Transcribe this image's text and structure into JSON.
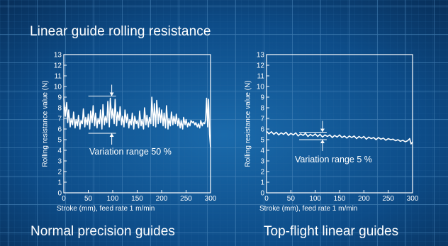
{
  "page": {
    "title": "Linear guide rolling resistance",
    "footer_left": "Normal precision guides",
    "footer_right": "Top-flight linear guides"
  },
  "colors": {
    "background": "#0b3f73",
    "grid_major": "#3d78ab",
    "grid_minor": "#1f5a8e",
    "ink": "#ffffff"
  },
  "chart_data": [
    {
      "type": "line",
      "xlabel": "Stroke (mm), feed rate 1 m/min",
      "ylabel": "Rolling resistance value (N)",
      "xlim": [
        0,
        300
      ],
      "ylim": [
        0,
        13
      ],
      "xticks": [
        "0",
        "50",
        "100",
        "150",
        "200",
        "250",
        "300"
      ],
      "yticks": [
        "0",
        "1",
        "2",
        "3",
        "4",
        "5",
        "6",
        "7",
        "8",
        "9",
        "10",
        "11",
        "12",
        "13"
      ],
      "annotation": "Variation range 50 %",
      "range_marker": {
        "x": 98,
        "y_high": 9.1,
        "y_low": 5.6
      },
      "series": [
        {
          "x": [
            0,
            3,
            6,
            8,
            10,
            13,
            15,
            18,
            20,
            23,
            25,
            28,
            30,
            33,
            35,
            38,
            40,
            43,
            45,
            48,
            50,
            53,
            55,
            58,
            60,
            63,
            65,
            68,
            70,
            73,
            75,
            78,
            80,
            83,
            85,
            88,
            90,
            93,
            95,
            98,
            100,
            103,
            105,
            108,
            110,
            113,
            115,
            118,
            120,
            123,
            125,
            128,
            130,
            133,
            135,
            138,
            140,
            143,
            145,
            148,
            150,
            153,
            155,
            158,
            160,
            163,
            165,
            168,
            170,
            173,
            175,
            178,
            180,
            183,
            185,
            188,
            190,
            193,
            195,
            198,
            200,
            203,
            205,
            208,
            210,
            213,
            215,
            218,
            220,
            223,
            225,
            228,
            230,
            233,
            235,
            238,
            240,
            243,
            245,
            248,
            250,
            253,
            255,
            258,
            260,
            263,
            265,
            268,
            270,
            273,
            275,
            278,
            280,
            283,
            285,
            288,
            290,
            292,
            294,
            296,
            298,
            300
          ],
          "y": [
            8.9,
            7.2,
            8.5,
            6.6,
            7.8,
            6.2,
            7.0,
            6.4,
            7.6,
            6.1,
            6.9,
            6.3,
            7.3,
            6.0,
            6.8,
            6.5,
            7.9,
            6.2,
            7.1,
            6.4,
            7.4,
            6.0,
            7.7,
            6.6,
            8.2,
            6.3,
            7.5,
            6.1,
            7.0,
            6.5,
            7.8,
            6.0,
            8.3,
            6.4,
            7.2,
            6.6,
            8.6,
            6.2,
            8.9,
            7.0,
            7.9,
            6.5,
            8.8,
            6.3,
            7.6,
            6.8,
            8.1,
            6.4,
            7.2,
            6.2,
            7.8,
            6.6,
            7.4,
            6.1,
            6.9,
            6.4,
            7.5,
            6.0,
            7.2,
            6.5,
            6.8,
            6.1,
            7.7,
            6.3,
            6.9,
            6.0,
            8.0,
            6.4,
            7.3,
            6.2,
            7.1,
            6.5,
            9.0,
            6.3,
            8.4,
            6.2,
            8.7,
            6.5,
            8.0,
            6.6,
            7.8,
            6.3,
            7.5,
            6.1,
            8.2,
            6.0,
            7.0,
            6.3,
            7.6,
            6.4,
            7.2,
            6.5,
            7.4,
            6.3,
            7.0,
            6.1,
            6.8,
            6.0,
            7.1,
            6.4,
            6.9,
            6.2,
            6.6,
            6.3,
            6.8,
            6.6,
            6.7,
            6.4,
            6.6,
            6.2,
            6.5,
            6.1,
            6.8,
            6.3,
            6.6,
            6.5,
            6.9,
            8.9,
            6.2,
            8.8,
            5.5,
            4.3
          ]
        }
      ]
    },
    {
      "type": "line",
      "xlabel": "Stroke (mm), feed rate 1 m/min",
      "ylabel": "Rolling resistance value (N)",
      "xlim": [
        0,
        300
      ],
      "ylim": [
        0,
        13
      ],
      "xticks": [
        "0",
        "50",
        "100",
        "150",
        "200",
        "250",
        "300"
      ],
      "yticks": [
        "0",
        "1",
        "2",
        "3",
        "4",
        "5",
        "6",
        "7",
        "8",
        "9",
        "10",
        "11",
        "12",
        "13"
      ],
      "annotation": "Variation range 5 %",
      "range_marker": {
        "x": 115,
        "y_high": 5.7,
        "y_low": 5.0
      },
      "series": [
        {
          "x": [
            0,
            5,
            10,
            15,
            20,
            25,
            30,
            35,
            40,
            45,
            50,
            55,
            60,
            65,
            70,
            75,
            80,
            85,
            90,
            95,
            100,
            105,
            110,
            115,
            120,
            125,
            130,
            135,
            140,
            145,
            150,
            155,
            160,
            165,
            170,
            175,
            180,
            185,
            190,
            195,
            200,
            205,
            210,
            215,
            220,
            225,
            230,
            235,
            240,
            245,
            250,
            255,
            260,
            265,
            270,
            275,
            280,
            285,
            290,
            294,
            297,
            300
          ],
          "y": [
            5.8,
            5.55,
            5.75,
            5.5,
            5.7,
            5.45,
            5.65,
            5.5,
            5.7,
            5.4,
            5.6,
            5.45,
            5.65,
            5.35,
            5.55,
            5.4,
            5.6,
            5.3,
            5.5,
            5.35,
            5.55,
            5.3,
            5.5,
            5.25,
            5.45,
            5.3,
            5.45,
            5.2,
            5.4,
            5.25,
            5.45,
            5.2,
            5.35,
            5.15,
            5.35,
            5.2,
            5.35,
            5.1,
            5.3,
            5.15,
            5.3,
            5.05,
            5.25,
            5.1,
            5.2,
            5.0,
            5.2,
            5.05,
            5.15,
            4.95,
            5.1,
            5.0,
            5.05,
            4.9,
            5.0,
            4.85,
            4.95,
            4.8,
            4.9,
            5.1,
            4.6,
            4.8
          ]
        }
      ]
    }
  ]
}
